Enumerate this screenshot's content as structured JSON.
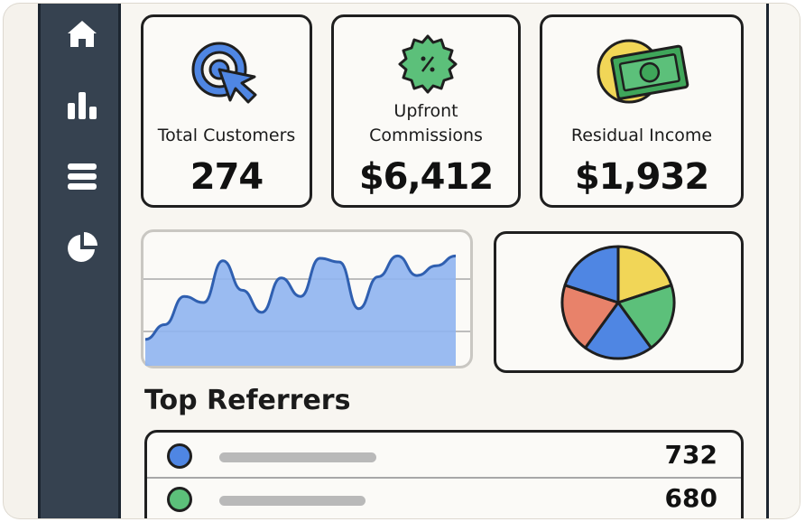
{
  "sidebar": {
    "icons": [
      "home-icon",
      "bar-chart-icon",
      "menu-icon",
      "pie-chart-icon"
    ]
  },
  "stats": [
    {
      "label_lines": [
        "Total Customers"
      ],
      "value": "274",
      "icon": "target-cursor-icon"
    },
    {
      "label_lines": [
        "Upfront",
        "Commissions"
      ],
      "value": "$6,412",
      "icon": "percent-badge-icon"
    },
    {
      "label_lines": [
        "Residual Income"
      ],
      "value": "$1,932",
      "icon": "money-icon"
    }
  ],
  "top_referrers": {
    "title": "Top Referrers",
    "rows": [
      {
        "color": "#4f86e3",
        "value": "732"
      },
      {
        "color": "#5cc07a",
        "value": "680"
      }
    ]
  },
  "chart_data": [
    {
      "type": "area",
      "x": [
        0,
        1,
        2,
        3,
        4,
        5,
        6,
        7,
        8,
        9,
        10,
        11,
        12,
        13,
        14,
        15,
        16
      ],
      "y": [
        20,
        32,
        55,
        50,
        84,
        60,
        42,
        70,
        55,
        86,
        83,
        45,
        71,
        88,
        72,
        80,
        88
      ],
      "color": "#4f86e3"
    },
    {
      "type": "pie",
      "values": [
        20,
        20,
        20,
        20,
        20
      ],
      "colors": [
        "#f1d657",
        "#5cc07a",
        "#4f86e3",
        "#e8826a",
        "#4f86e3"
      ]
    }
  ]
}
